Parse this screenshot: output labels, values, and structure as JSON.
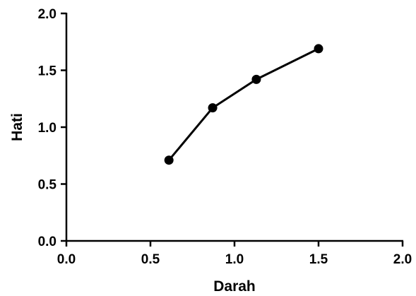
{
  "chart_data": {
    "type": "line",
    "title": "",
    "xlabel": "Darah",
    "ylabel": "Hati",
    "xlim": [
      0.0,
      2.0
    ],
    "ylim": [
      0.0,
      2.0
    ],
    "x_ticks": [
      "0.0",
      "0.5",
      "1.0",
      "1.5",
      "2.0"
    ],
    "y_ticks": [
      "0.0",
      "0.5",
      "1.0",
      "1.5",
      "2.0"
    ],
    "grid": false,
    "legend": "none",
    "series": [
      {
        "x": [
          0.61,
          0.87,
          1.13,
          1.5
        ],
        "y": [
          0.71,
          1.17,
          1.42,
          1.69
        ],
        "color": "#000000",
        "marker": "circle"
      }
    ]
  }
}
